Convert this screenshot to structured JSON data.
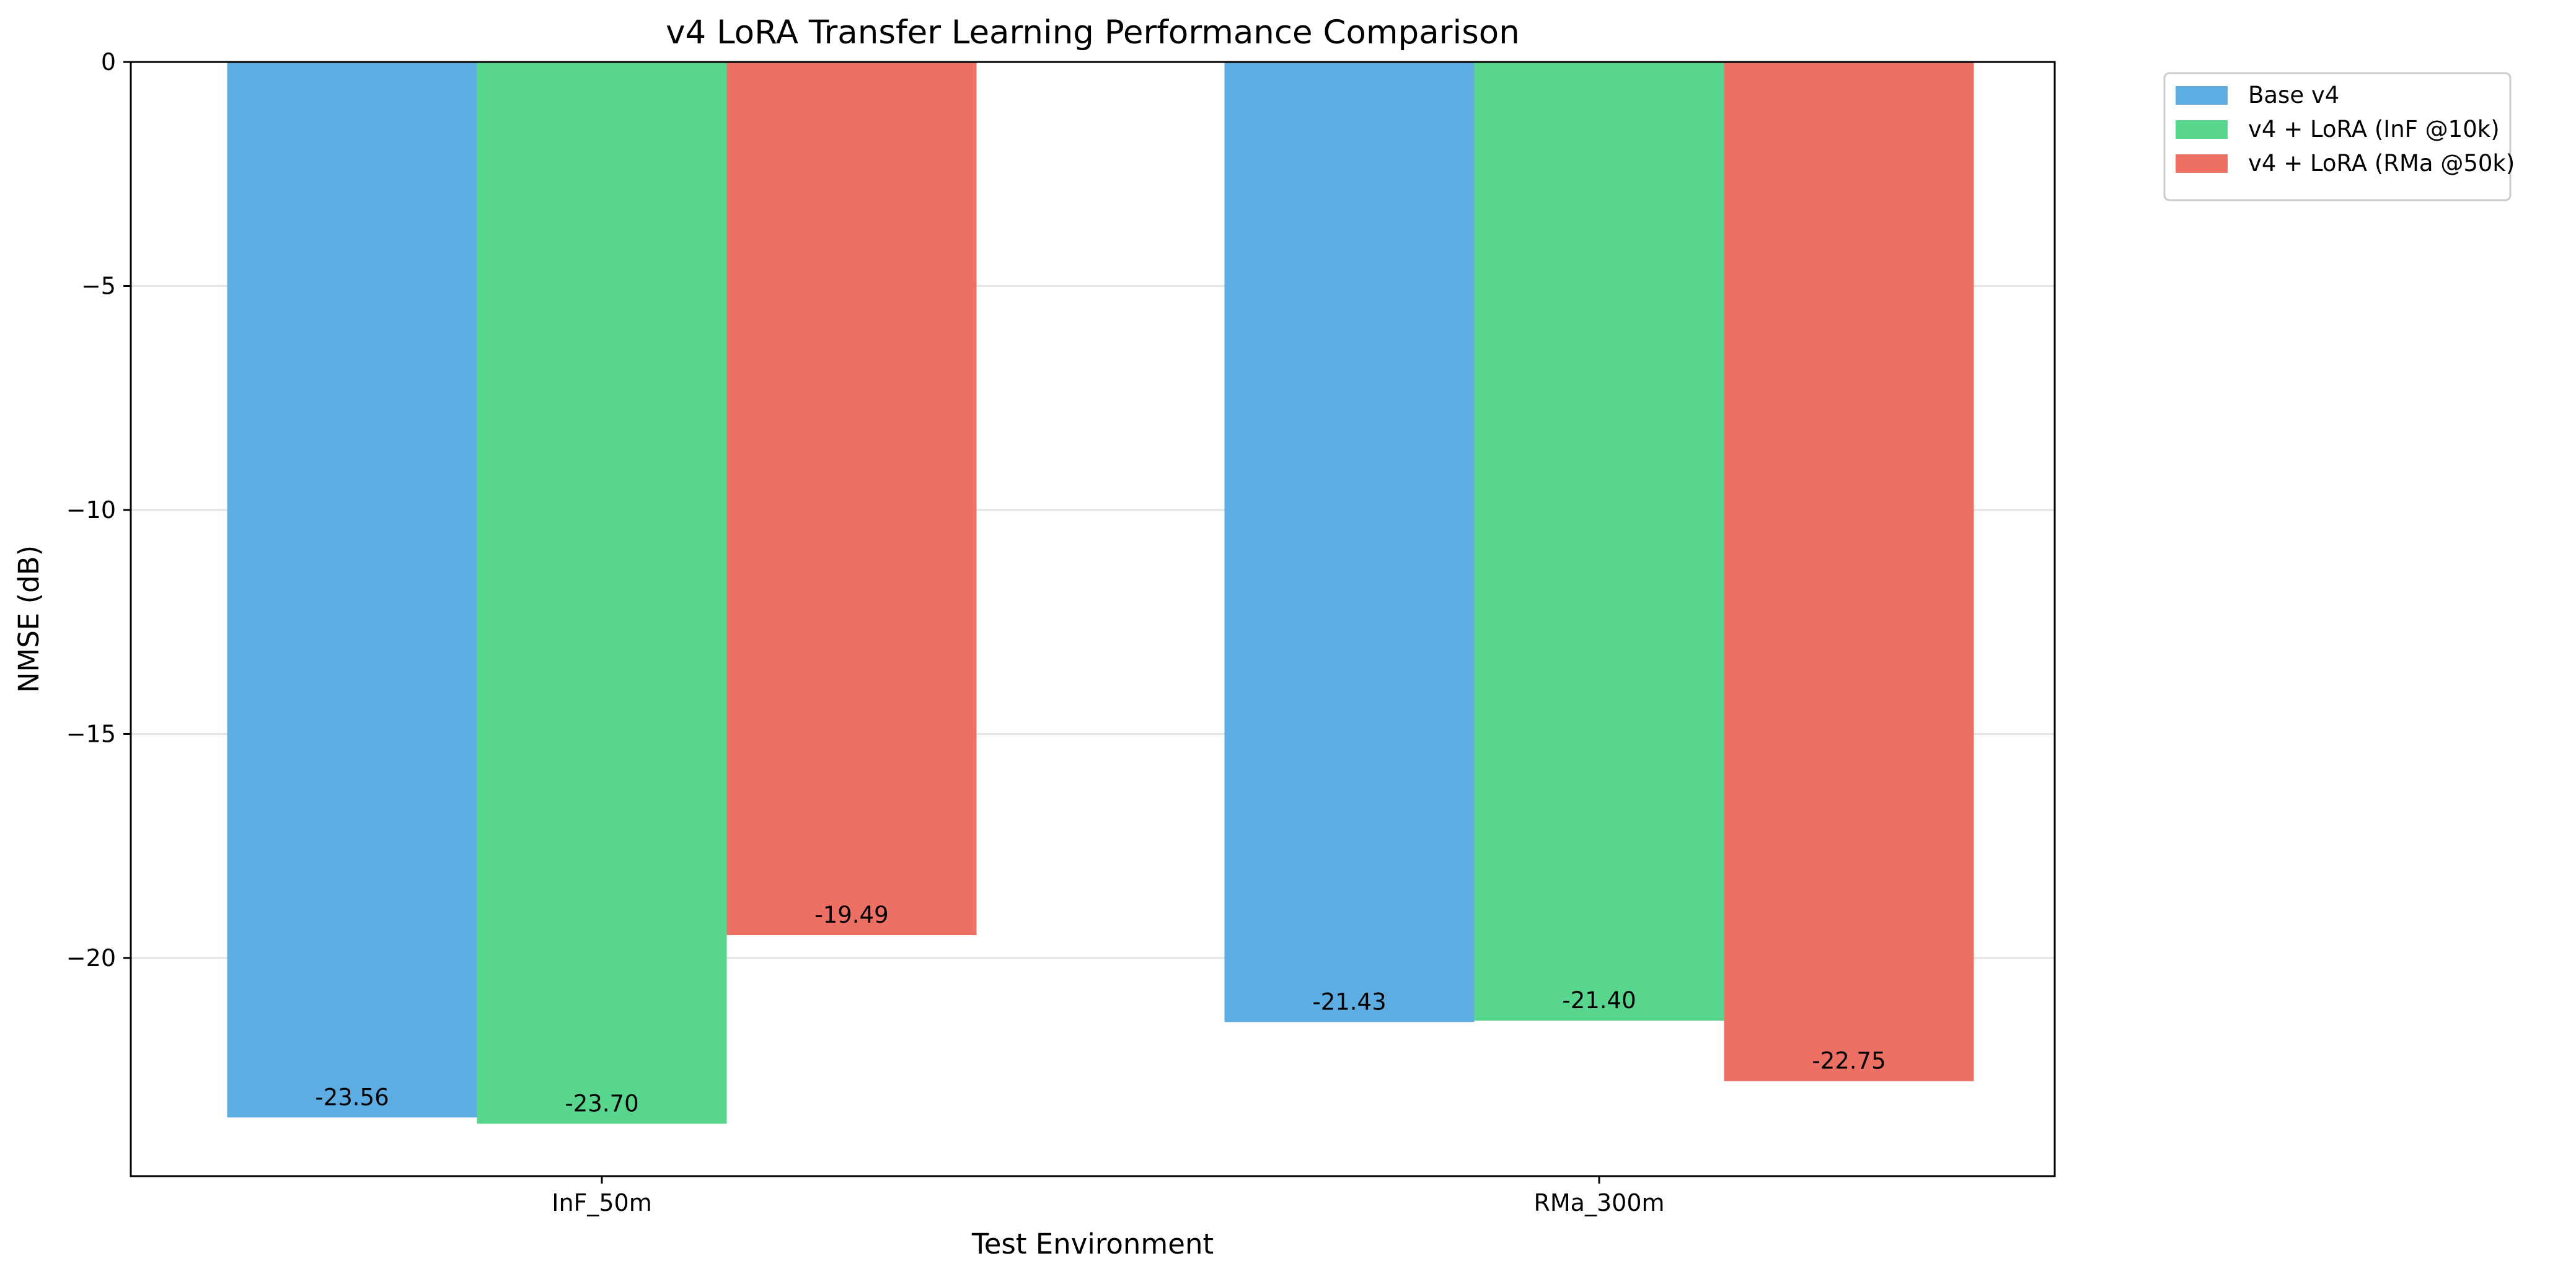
{
  "chart_data": {
    "type": "bar",
    "title": "v4 LoRA Transfer Learning Performance Comparison",
    "xlabel": "Test Environment",
    "ylabel": "NMSE (dB)",
    "categories": [
      "InF_50m",
      "RMa_300m"
    ],
    "series": [
      {
        "name": "Base v4",
        "values": [
          -23.56,
          -21.43
        ],
        "color": "#5dade2"
      },
      {
        "name": "v4 + LoRA (InF @10k)",
        "values": [
          -23.7,
          -21.4
        ],
        "color": "#58d68d"
      },
      {
        "name": "v4 + LoRA (RMa @50k)",
        "values": [
          -19.49,
          -22.75
        ],
        "color": "#ec7063"
      }
    ],
    "data_labels": [
      [
        "-23.56",
        "-21.43"
      ],
      [
        "-23.70",
        "-21.40"
      ],
      [
        "-19.49",
        "-22.75"
      ]
    ],
    "ylim": [
      -24.87,
      0
    ],
    "yticks": [
      0,
      -5,
      -10,
      -15,
      -20
    ],
    "ytick_labels": [
      "0",
      "−5",
      "−10",
      "−15",
      "−20"
    ],
    "grid": "horizontal",
    "legend_position": "outside upper right"
  }
}
